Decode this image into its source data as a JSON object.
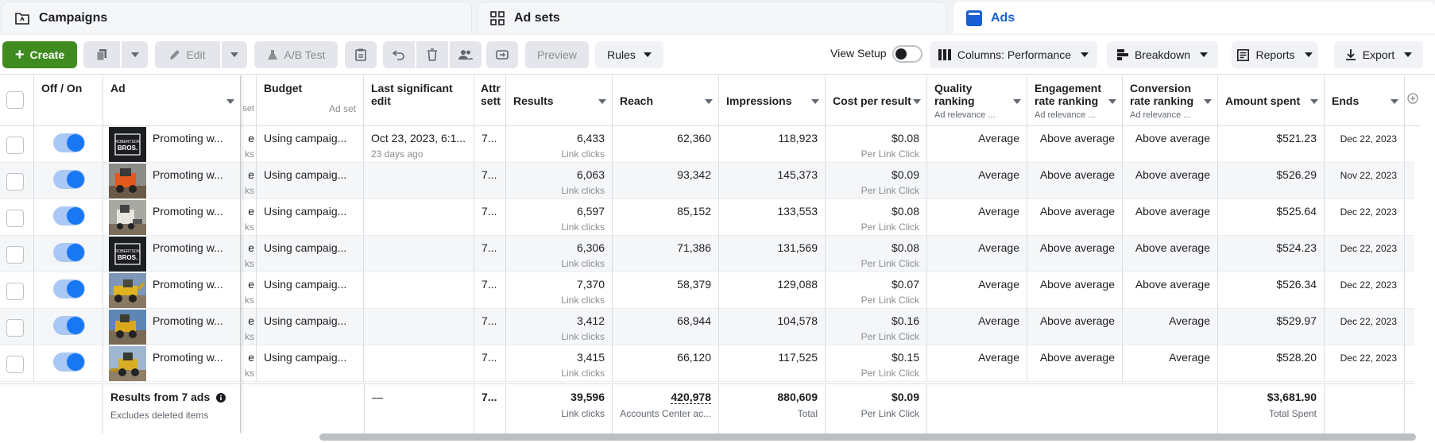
{
  "tabs": [
    {
      "label": "Campaigns",
      "icon": "folder-icon"
    },
    {
      "label": "Ad sets",
      "icon": "grid-icon"
    },
    {
      "label": "Ads",
      "icon": "ad-icon"
    }
  ],
  "toolbar": {
    "create": "Create",
    "edit": "Edit",
    "ab_test": "A/B Test",
    "preview": "Preview",
    "rules": "Rules",
    "view_setup": "View Setup",
    "columns": "Columns: Performance",
    "breakdown": "Breakdown",
    "reports": "Reports",
    "export": "Export"
  },
  "headers": {
    "offon": "Off / On",
    "ad": "Ad",
    "adset_partial": "set",
    "budget": "Budget",
    "budget_sub": "Ad set",
    "last_edit": "Last significant edit",
    "attr": "Attr sett",
    "results": "Results",
    "reach": "Reach",
    "impressions": "Impressions",
    "cost_per_result": "Cost per result",
    "quality": "Quality ranking",
    "quality_sub": "Ad relevance ...",
    "engagement": "Engagement rate ranking",
    "engagement_sub": "Ad relevance ...",
    "conversion": "Conversion rate ranking",
    "conversion_sub": "Ad relevance ...",
    "amount_spent": "Amount spent",
    "ends": "Ends"
  },
  "rows": [
    {
      "thumb": "logo",
      "ad": "Promoting w...",
      "adset": "e",
      "adset_sub": "ks",
      "budget": "Using campaig...",
      "edit": "Oct 23, 2023, 6:1...",
      "edit_sub": "23 days ago",
      "attr": "7...",
      "results": "6,433",
      "results_sub": "Link clicks",
      "reach": "62,360",
      "impressions": "118,923",
      "cost": "$0.08",
      "cost_sub": "Per Link Click",
      "quality": "Average",
      "engagement": "Above average",
      "conversion": "Above average",
      "spent": "$521.23",
      "ends": "Dec 22, 2023"
    },
    {
      "thumb": "orange",
      "ad": "Promoting w...",
      "adset": "e",
      "adset_sub": "ks",
      "budget": "Using campaig...",
      "edit": "",
      "edit_sub": "",
      "attr": "7...",
      "results": "6,063",
      "results_sub": "Link clicks",
      "reach": "93,342",
      "impressions": "145,373",
      "cost": "$0.09",
      "cost_sub": "Per Link Click",
      "quality": "Average",
      "engagement": "Above average",
      "conversion": "Above average",
      "spent": "$526.29",
      "ends": "Nov 22, 2023"
    },
    {
      "thumb": "white",
      "ad": "Promoting w...",
      "adset": "e",
      "adset_sub": "ks",
      "budget": "Using campaig...",
      "edit": "",
      "edit_sub": "",
      "attr": "7...",
      "results": "6,597",
      "results_sub": "Link clicks",
      "reach": "85,152",
      "impressions": "133,553",
      "cost": "$0.08",
      "cost_sub": "Per Link Click",
      "quality": "Average",
      "engagement": "Above average",
      "conversion": "Above average",
      "spent": "$525.64",
      "ends": "Dec 22, 2023"
    },
    {
      "thumb": "logo",
      "ad": "Promoting w...",
      "adset": "e",
      "adset_sub": "ks",
      "budget": "Using campaig...",
      "edit": "",
      "edit_sub": "",
      "attr": "7...",
      "results": "6,306",
      "results_sub": "Link clicks",
      "reach": "71,386",
      "impressions": "131,569",
      "cost": "$0.08",
      "cost_sub": "Per Link Click",
      "quality": "Average",
      "engagement": "Above average",
      "conversion": "Above average",
      "spent": "$524.23",
      "ends": "Dec 22, 2023"
    },
    {
      "thumb": "yellow",
      "ad": "Promoting w...",
      "adset": "e",
      "adset_sub": "ks",
      "budget": "Using campaig...",
      "edit": "",
      "edit_sub": "",
      "attr": "7...",
      "results": "7,370",
      "results_sub": "Link clicks",
      "reach": "58,379",
      "impressions": "129,088",
      "cost": "$0.07",
      "cost_sub": "Per Link Click",
      "quality": "Average",
      "engagement": "Above average",
      "conversion": "Above average",
      "spent": "$526.34",
      "ends": "Dec 22, 2023"
    },
    {
      "thumb": "blue",
      "ad": "Promoting w...",
      "adset": "e",
      "adset_sub": "ks",
      "budget": "Using campaig...",
      "edit": "",
      "edit_sub": "",
      "attr": "7...",
      "results": "3,412",
      "results_sub": "Link clicks",
      "reach": "68,944",
      "impressions": "104,578",
      "cost": "$0.16",
      "cost_sub": "Per Link Click",
      "quality": "Average",
      "engagement": "Above average",
      "conversion": "Average",
      "spent": "$529.97",
      "ends": "Dec 22, 2023"
    },
    {
      "thumb": "loader",
      "ad": "Promoting w...",
      "adset": "e",
      "adset_sub": "ks",
      "budget": "Using campaig...",
      "edit": "",
      "edit_sub": "",
      "attr": "7...",
      "results": "3,415",
      "results_sub": "Link clicks",
      "reach": "66,120",
      "impressions": "117,525",
      "cost": "$0.15",
      "cost_sub": "Per Link Click",
      "quality": "Average",
      "engagement": "Above average",
      "conversion": "Average",
      "spent": "$528.20",
      "ends": "Dec 22, 2023"
    }
  ],
  "footer": {
    "title": "Results from 7 ads",
    "sub": "Excludes deleted items",
    "edit": "—",
    "attr": "7...",
    "results": "39,596",
    "results_sub": "Link clicks",
    "reach": "420,978",
    "reach_sub": "Accounts Center ac...",
    "impressions": "880,609",
    "impressions_sub": "Total",
    "cost": "$0.09",
    "cost_sub": "Per Link Click",
    "spent": "$3,681.90",
    "spent_sub": "Total Spent"
  },
  "logo_text": "ROBERTSON BROS.",
  "colors": {
    "create": "#3f8b1f",
    "toggle_on": "#1877f2",
    "active_tab": "#1a5fd0"
  }
}
